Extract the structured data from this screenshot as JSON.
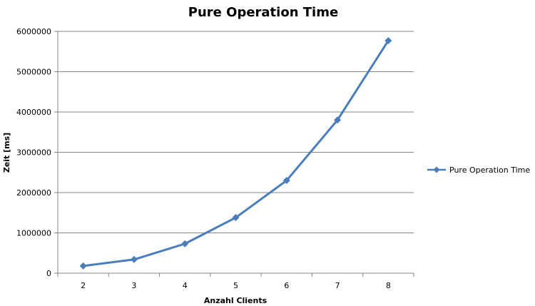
{
  "chart_data": {
    "type": "line",
    "title": "Pure Operation Time",
    "xlabel": "Anzahl Clients",
    "ylabel": "Zeit [ms]",
    "categories": [
      "2",
      "3",
      "4",
      "5",
      "6",
      "7",
      "8"
    ],
    "yticks": [
      "0",
      "1000000",
      "2000000",
      "3000000",
      "4000000",
      "5000000",
      "6000000"
    ],
    "ylim": [
      0,
      6000000
    ],
    "grid": true,
    "legend_position": "right",
    "series": [
      {
        "name": "Pure Operation Time",
        "color": "#4a7ebb",
        "marker": "diamond",
        "values": [
          180000,
          340000,
          730000,
          1380000,
          2300000,
          3800000,
          5770000
        ]
      }
    ]
  }
}
